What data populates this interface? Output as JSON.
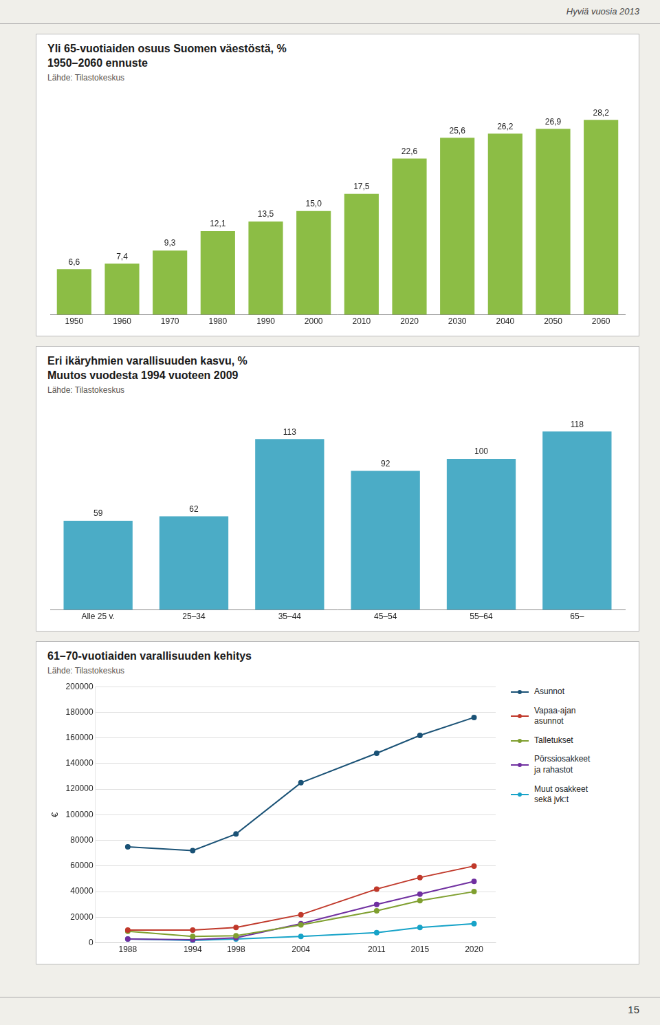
{
  "annotations": [
    "Hyviä vuosia 2013",
    "15"
  ],
  "chart_data": [
    {
      "type": "bar",
      "title": "Yli 65-vuotiaiden osuus Suomen väestöstä, %",
      "subtitle": "1950–2060 ennuste",
      "annotations": [
        "Lähde: Tilastokeskus"
      ],
      "categories": [
        "1950",
        "1960",
        "1970",
        "1980",
        "1990",
        "2000",
        "2010",
        "2020",
        "2030",
        "2040",
        "2050",
        "2060"
      ],
      "values": [
        6.6,
        7.4,
        9.3,
        12.1,
        13.5,
        15.0,
        17.5,
        22.6,
        25.6,
        26.2,
        26.9,
        28.2
      ],
      "value_labels": [
        "6,6",
        "7,4",
        "9,3",
        "12,1",
        "13,5",
        "15,0",
        "17,5",
        "22,6",
        "25,6",
        "26,2",
        "26,9",
        "28,2"
      ],
      "color": "#8cbd45",
      "ylim": [
        0,
        32
      ],
      "data_labels": true,
      "tick_labels": "x",
      "grid": false
    },
    {
      "type": "bar",
      "title": "Eri ikäryhmien varallisuuden kasvu, %",
      "subtitle": "Muutos vuodesta 1994 vuoteen 2009",
      "annotations": [
        "Lähde: Tilastokeskus"
      ],
      "categories": [
        "Alle 25 v.",
        "25–34",
        "35–44",
        "45–54",
        "55–64",
        "65–"
      ],
      "values": [
        59,
        62,
        113,
        92,
        100,
        118
      ],
      "color": "#4bacc6",
      "ylim": [
        0,
        135
      ],
      "data_labels": true,
      "tick_labels": "x",
      "grid": false
    },
    {
      "type": "line",
      "title": "61–70-vuotiaiden varallisuuden kehitys",
      "annotations": [
        "Lähde: Tilastokeskus"
      ],
      "y_label": "€",
      "x": [
        1988,
        1994,
        1998,
        2004,
        2011,
        2015,
        2020
      ],
      "series": [
        {
          "name": "Asunnot",
          "color": "#1a5276",
          "marker": "circle",
          "values": [
            75000,
            72000,
            85000,
            125000,
            148000,
            162000,
            176000
          ]
        },
        {
          "name": "Vapaa-ajan\nasunnot",
          "color": "#c0392b",
          "marker": "circle",
          "values": [
            10000,
            10000,
            12000,
            22000,
            42000,
            51000,
            60000
          ]
        },
        {
          "name": "Talletukset",
          "color": "#7f9f2f",
          "marker": "circle",
          "values": [
            9000,
            5000,
            5500,
            14000,
            25000,
            33000,
            40000
          ]
        },
        {
          "name": "Pörssiosakkeet\nja rahastot",
          "color": "#7030a0",
          "marker": "circle",
          "values": [
            3000,
            2500,
            4000,
            15000,
            30000,
            38000,
            48000
          ]
        },
        {
          "name": "Muut osakkeet\nsekä jvk:t",
          "color": "#17a3c8",
          "marker": "circle",
          "values": [
            3000,
            2000,
            3000,
            5000,
            8000,
            12000,
            15000
          ]
        }
      ],
      "xlim": [
        1985,
        2022
      ],
      "xticks": [
        1988,
        1994,
        1998,
        2004,
        2011,
        2015,
        2020
      ],
      "ylim": [
        0,
        200000
      ],
      "yticks": [
        0,
        20000,
        40000,
        60000,
        80000,
        100000,
        120000,
        140000,
        160000,
        180000,
        200000
      ],
      "grid": "y",
      "legend": "right"
    }
  ]
}
